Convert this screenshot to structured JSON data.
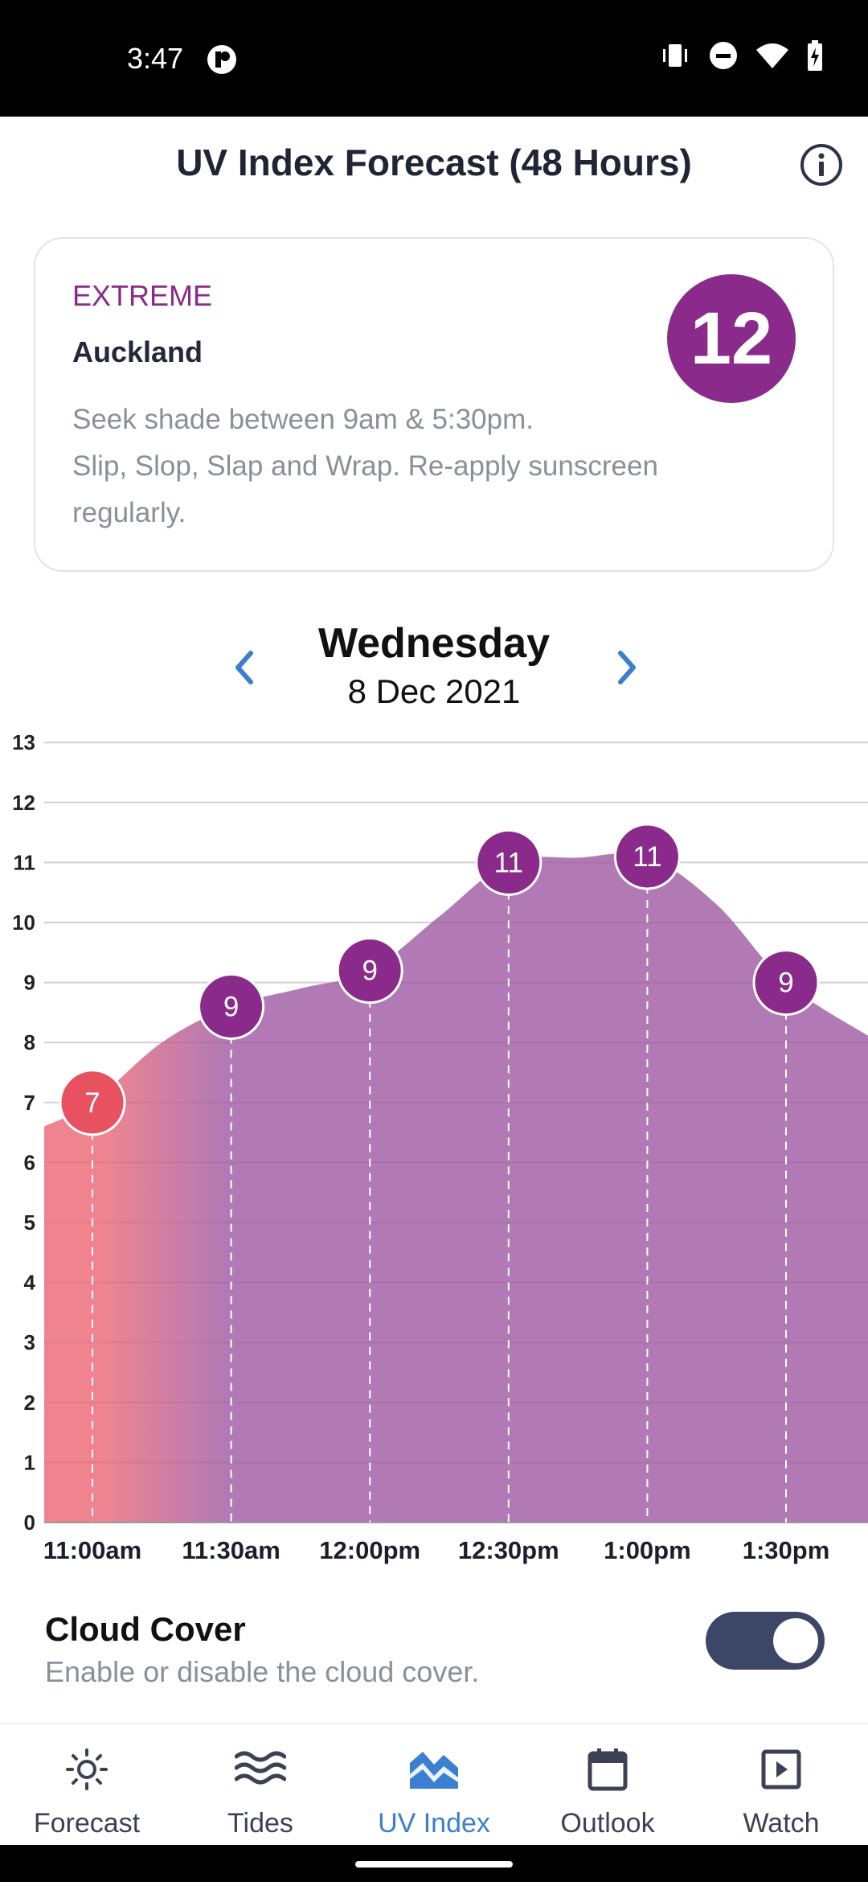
{
  "status_bar": {
    "time": "3:47"
  },
  "header": {
    "title": "UV Index Forecast (48 Hours)",
    "info_icon": "info-icon"
  },
  "summary_card": {
    "level": "EXTREME",
    "location": "Auckland",
    "advice_line1": "Seek shade between 9am & 5:30pm.",
    "advice_line2": "Slip, Slop, Slap and Wrap. Re-apply sunscreen regularly.",
    "uv_value": "12",
    "level_color": "#8a2a8a"
  },
  "day_nav": {
    "day": "Wednesday",
    "date": "8 Dec 2021"
  },
  "chart_data": {
    "type": "area",
    "title": "",
    "x": [
      "11:00am",
      "11:30am",
      "12:00pm",
      "12:30pm",
      "1:00pm",
      "1:30pm"
    ],
    "labeled_values": [
      7,
      9,
      9,
      11,
      11,
      9
    ],
    "curve": [
      [
        -0.35,
        6.6
      ],
      [
        0,
        7.0
      ],
      [
        0.5,
        8.0
      ],
      [
        1,
        8.6
      ],
      [
        1.5,
        8.9
      ],
      [
        2,
        9.2
      ],
      [
        2.5,
        10.1
      ],
      [
        3,
        11.0
      ],
      [
        3.5,
        11.08
      ],
      [
        4,
        11.1
      ],
      [
        4.5,
        10.3
      ],
      [
        5,
        9.0
      ],
      [
        5.6,
        8.1
      ]
    ],
    "yticks": [
      0,
      1,
      2,
      3,
      4,
      5,
      6,
      7,
      8,
      9,
      10,
      11,
      12,
      13
    ],
    "ylim": [
      0,
      13
    ],
    "grid": true,
    "colors": {
      "high": "#e8515f",
      "extreme": "#8a2a8a",
      "fill_high": "#ef8490",
      "fill_extreme": "#b27ab4"
    }
  },
  "cloud_cover": {
    "title": "Cloud Cover",
    "subtitle": "Enable or disable the cloud cover.",
    "enabled": true
  },
  "bottom_nav": [
    {
      "label": "Forecast",
      "icon": "sun-icon",
      "active": false
    },
    {
      "label": "Tides",
      "icon": "waves-icon",
      "active": false
    },
    {
      "label": "UV Index",
      "icon": "uv-chart-icon",
      "active": true
    },
    {
      "label": "Outlook",
      "icon": "calendar-icon",
      "active": false
    },
    {
      "label": "Watch",
      "icon": "play-icon",
      "active": false
    }
  ]
}
